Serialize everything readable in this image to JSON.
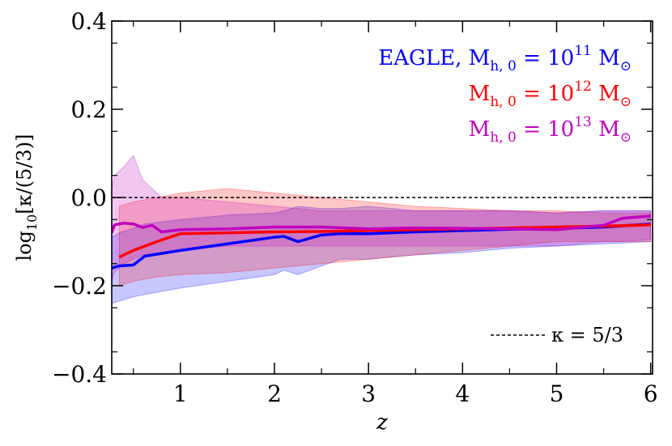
{
  "chart_data": {
    "type": "line",
    "xlabel": "z",
    "ylabel": "log10[κ/(5/3)]",
    "xlim": [
      0.27,
      6.02
    ],
    "ylim": [
      -0.4,
      0.4
    ],
    "x_ticks": [
      1,
      2,
      3,
      4,
      5,
      6
    ],
    "x_tick_labels": [
      "1",
      "2",
      "3",
      "4",
      "5",
      "6"
    ],
    "y_ticks": [
      -0.4,
      -0.2,
      0.0,
      0.2,
      0.4
    ],
    "y_tick_labels": [
      "−0.4",
      "−0.2",
      "0.0",
      "0.2",
      "0.4"
    ],
    "grid": false,
    "legend_placement": "top-right",
    "reference_line": {
      "y": 0.0,
      "style": "dashed",
      "label": "κ = 5/3"
    },
    "series": [
      {
        "name": "EAGLE, M_h,0 = 10^11 M_⊙",
        "color": "#0000ff",
        "x": [
          0.27,
          0.35,
          0.5,
          0.62,
          1.0,
          1.5,
          2.0,
          2.1,
          2.25,
          2.5,
          2.7,
          3.0,
          3.5,
          4.0,
          4.5,
          5.0,
          5.5,
          6.0
        ],
        "y": [
          -0.16,
          -0.155,
          -0.153,
          -0.133,
          -0.12,
          -0.105,
          -0.09,
          -0.088,
          -0.1,
          -0.085,
          -0.082,
          -0.082,
          -0.078,
          -0.075,
          -0.072,
          -0.07,
          -0.067,
          -0.06
        ],
        "band_upper": [
          -0.09,
          -0.08,
          -0.07,
          -0.06,
          -0.05,
          -0.04,
          -0.035,
          -0.03,
          -0.02,
          -0.025,
          -0.025,
          -0.02,
          -0.03,
          -0.03,
          -0.03,
          -0.035,
          -0.03,
          -0.03
        ],
        "band_lower": [
          -0.24,
          -0.235,
          -0.225,
          -0.22,
          -0.205,
          -0.19,
          -0.175,
          -0.165,
          -0.175,
          -0.155,
          -0.14,
          -0.14,
          -0.13,
          -0.125,
          -0.115,
          -0.11,
          -0.105,
          -0.1
        ]
      },
      {
        "name": "M_h,0 = 10^12 M_⊙",
        "color": "#ff0000",
        "x": [
          0.35,
          0.5,
          0.75,
          1.0,
          1.5,
          2.0,
          2.5,
          3.0,
          3.5,
          4.0,
          4.5,
          5.0,
          5.5,
          6.0
        ],
        "y": [
          -0.135,
          -0.12,
          -0.1,
          -0.082,
          -0.08,
          -0.078,
          -0.077,
          -0.075,
          -0.073,
          -0.071,
          -0.069,
          -0.067,
          -0.065,
          -0.062
        ],
        "band_upper": [
          -0.02,
          -0.01,
          0.0,
          0.01,
          0.02,
          0.01,
          0.0,
          -0.01,
          -0.02,
          -0.025,
          -0.03,
          -0.03,
          -0.035,
          -0.035
        ],
        "band_lower": [
          -0.2,
          -0.19,
          -0.18,
          -0.175,
          -0.17,
          -0.16,
          -0.15,
          -0.14,
          -0.13,
          -0.12,
          -0.11,
          -0.1,
          -0.1,
          -0.1
        ]
      },
      {
        "name": "M_h,0 = 10^13 M_⊙",
        "color": "#c000c0",
        "x": [
          0.27,
          0.3,
          0.4,
          0.5,
          0.6,
          0.7,
          0.8,
          1.0,
          1.5,
          2.0,
          2.5,
          3.0,
          3.5,
          4.0,
          4.5,
          5.0,
          5.5,
          5.7,
          6.0
        ],
        "y": [
          -0.08,
          -0.062,
          -0.058,
          -0.06,
          -0.068,
          -0.063,
          -0.078,
          -0.073,
          -0.071,
          -0.067,
          -0.067,
          -0.071,
          -0.069,
          -0.07,
          -0.071,
          -0.073,
          -0.063,
          -0.047,
          -0.042
        ],
        "band_upper": [
          0.02,
          0.05,
          0.07,
          0.095,
          0.04,
          0.02,
          0.0,
          0.0,
          -0.01,
          -0.02,
          -0.03,
          -0.03,
          -0.03,
          -0.03,
          -0.03,
          -0.035,
          -0.03,
          -0.03,
          -0.03
        ],
        "band_lower": [
          -0.19,
          -0.17,
          -0.15,
          -0.14,
          -0.13,
          -0.125,
          -0.125,
          -0.12,
          -0.11,
          -0.11,
          -0.11,
          -0.11,
          -0.11,
          -0.11,
          -0.11,
          -0.11,
          -0.1,
          -0.1,
          -0.095
        ]
      }
    ]
  }
}
